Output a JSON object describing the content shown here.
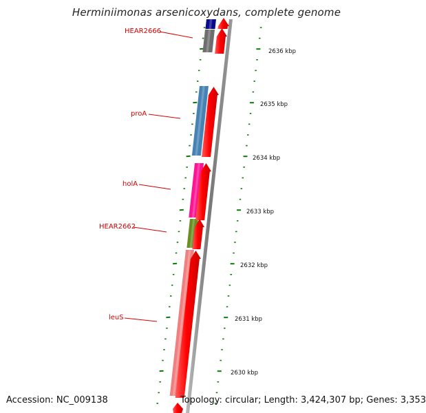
{
  "title": "Herminiimonas arsenicoxydans, complete genome",
  "footer": {
    "accession": "Accession: NC_009138",
    "summary": "Topology: circular; Length: 3,424,307 bp; Genes: 3,353"
  },
  "colors": {
    "reverse_strand_orf": "#ff0000",
    "tick_marks": "#0a7a0a",
    "backbone": "#808080",
    "label_text": "#d40000"
  },
  "gene_labels": [
    {
      "name": "HEAR2666"
    },
    {
      "name": "proA"
    },
    {
      "name": "holA"
    },
    {
      "name": "HEAR2662"
    },
    {
      "name": "leuS"
    }
  ],
  "gene_blocks": [
    {
      "name": "HEAR2667-block",
      "color": "#0a0a8c"
    },
    {
      "name": "HEAR2666-block",
      "color": "#6e6e6e"
    },
    {
      "name": "proA-block",
      "color": "#4682b4"
    },
    {
      "name": "holA-block",
      "color": "#ff1493"
    },
    {
      "name": "HEAR2662-block",
      "color": "#6b8e23"
    },
    {
      "name": "leuS-block",
      "color": "#f08080"
    }
  ],
  "kbp_labels": [
    "2636 kbp",
    "2635 kbp",
    "2634 kbp",
    "2633 kbp",
    "2632 kbp",
    "2631 kbp",
    "2630 kbp"
  ]
}
